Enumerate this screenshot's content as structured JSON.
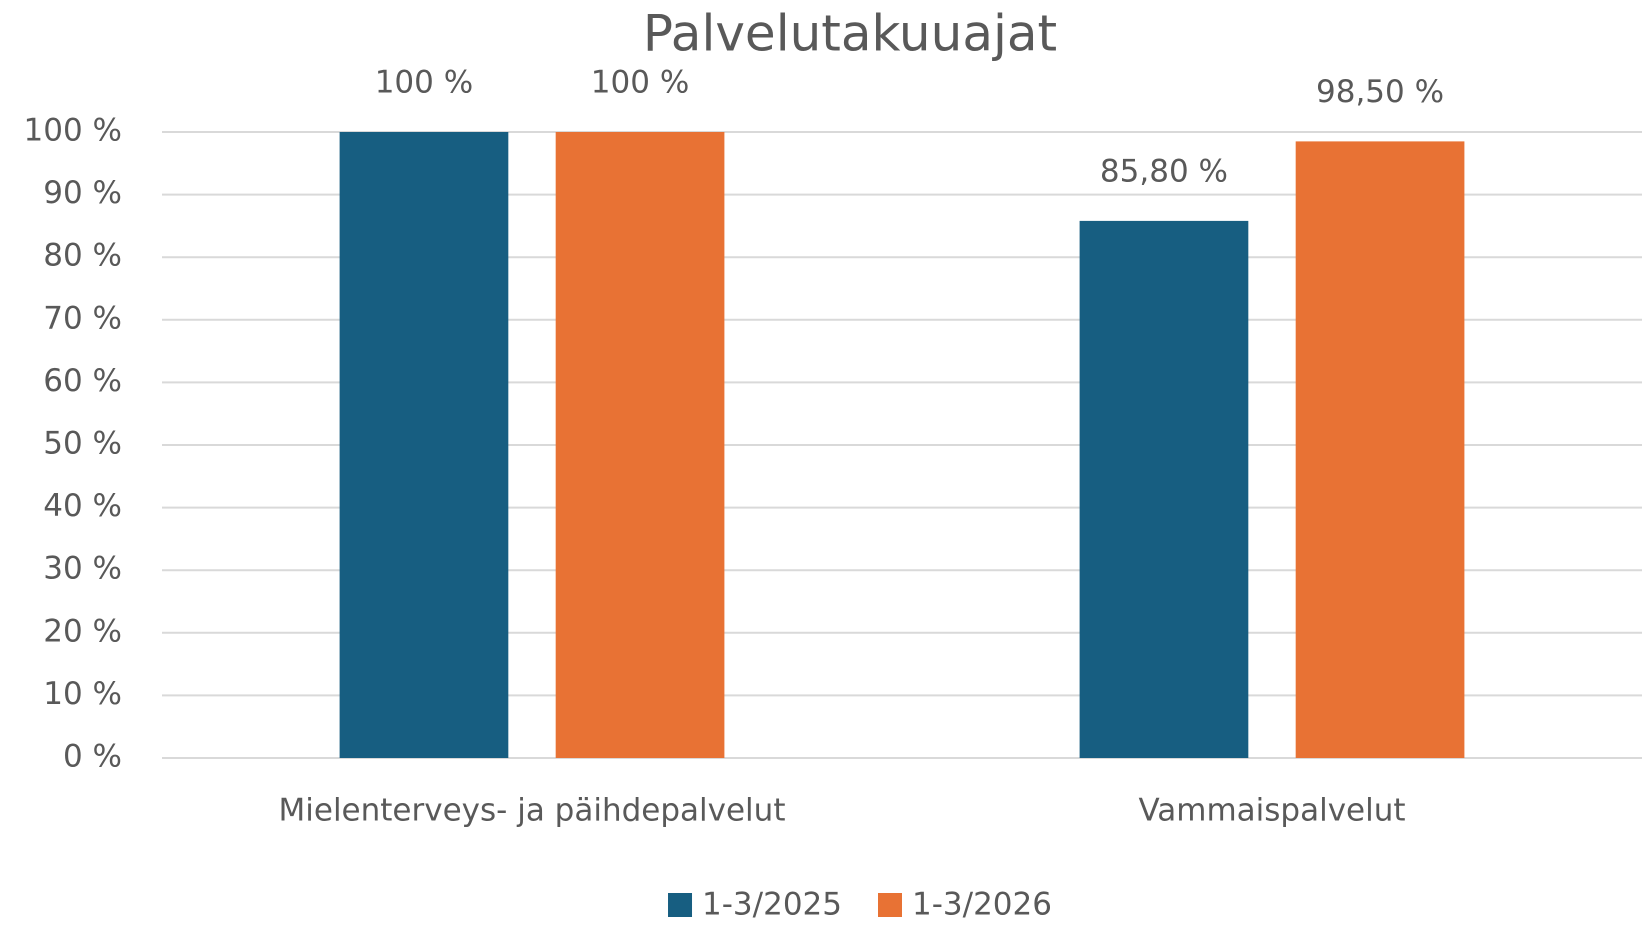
{
  "chart_data": {
    "type": "bar",
    "title": "Palvelutakuuajat",
    "categories": [
      "Mielenterveys- ja päihdepalvelut",
      "Vammaispalvelut"
    ],
    "series": [
      {
        "name": "1-3/2025",
        "color": "#175e81",
        "values": [
          100,
          85.8
        ],
        "value_labels": [
          "100 %",
          "85,80 %"
        ]
      },
      {
        "name": "1-3/2026",
        "color": "#e87234",
        "values": [
          100,
          98.5
        ],
        "value_labels": [
          "100 %",
          "98,50 %"
        ]
      }
    ],
    "ylim": [
      0,
      100
    ],
    "yticks": [
      {
        "value": 0,
        "label": "0 %"
      },
      {
        "value": 10,
        "label": "10 %"
      },
      {
        "value": 20,
        "label": "20 %"
      },
      {
        "value": 30,
        "label": "30 %"
      },
      {
        "value": 40,
        "label": "40 %"
      },
      {
        "value": 50,
        "label": "50 %"
      },
      {
        "value": 60,
        "label": "60 %"
      },
      {
        "value": 70,
        "label": "70 %"
      },
      {
        "value": 80,
        "label": "80 %"
      },
      {
        "value": 90,
        "label": "90 %"
      },
      {
        "value": 100,
        "label": "100 %"
      }
    ],
    "grid": true,
    "legend": "bottom"
  }
}
